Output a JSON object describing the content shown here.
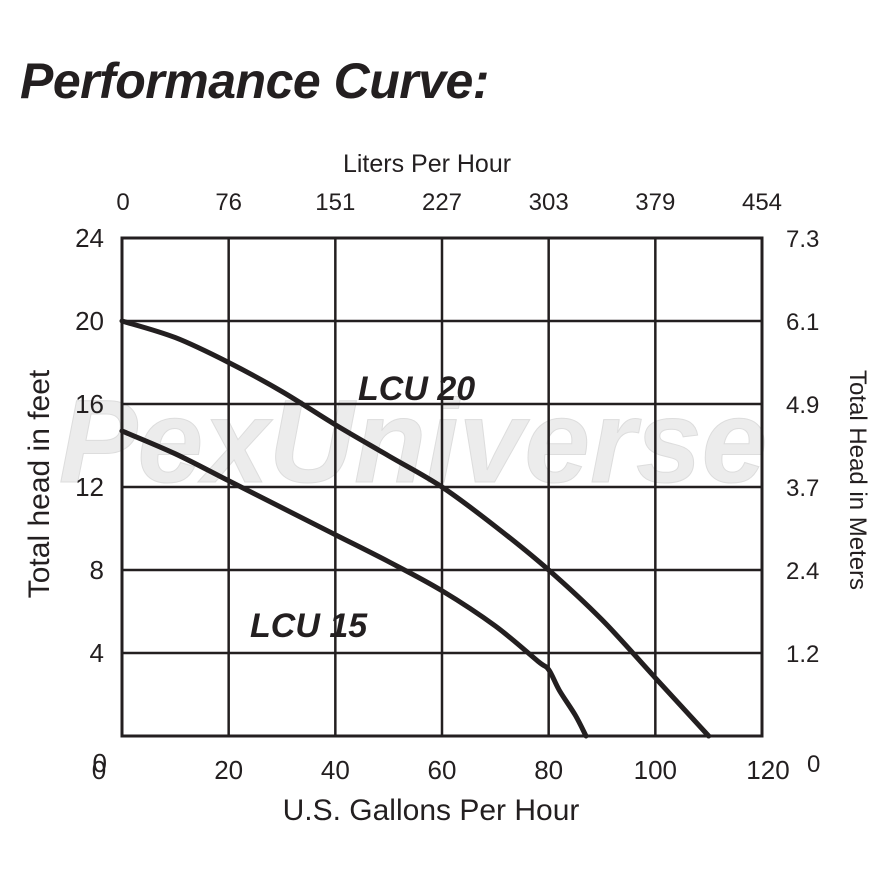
{
  "page": {
    "title": "Performance Curve:",
    "watermark": "PexUniverse"
  },
  "chart_data": {
    "type": "line",
    "title": "Performance Curve:",
    "xlabel": "U.S. Gallons Per Hour",
    "ylabel": "Total head in feet",
    "x2label": "Liters Per Hour",
    "y2label": "Total Head in Meters",
    "xlim": [
      0,
      120
    ],
    "ylim": [
      0,
      24
    ],
    "x_ticks": [
      0,
      20,
      40,
      60,
      80,
      100,
      120
    ],
    "y_ticks": [
      0,
      4,
      8,
      12,
      16,
      20,
      24
    ],
    "x_tick_labels": [
      "0",
      "20",
      "40",
      "60",
      "80",
      "100",
      "120"
    ],
    "y_tick_labels": [
      "0",
      "4",
      "8",
      "12",
      "16",
      "20",
      "24"
    ],
    "x2_tick_labels": [
      "0",
      "76",
      "151",
      "227",
      "303",
      "379",
      "454"
    ],
    "y2_tick_labels": [
      "0",
      "1.2",
      "2.4",
      "3.7",
      "4.9",
      "6.1",
      "7.3"
    ],
    "grid": true,
    "series": [
      {
        "name": "LCU 20",
        "x": [
          0,
          10,
          20,
          30,
          40,
          50,
          60,
          70,
          80,
          90,
          100,
          110
        ],
        "y": [
          20,
          19.2,
          18.0,
          16.6,
          15.0,
          13.5,
          12.0,
          10.1,
          8.0,
          5.6,
          2.8,
          0
        ]
      },
      {
        "name": "LCU 15",
        "x": [
          0,
          10,
          20,
          30,
          40,
          50,
          60,
          70,
          78,
          80,
          82,
          85,
          87
        ],
        "y": [
          14.7,
          13.6,
          12.3,
          11.0,
          9.7,
          8.4,
          7.0,
          5.3,
          3.6,
          3.2,
          2.2,
          1.0,
          0
        ]
      }
    ],
    "colors": {
      "line": "#231f20",
      "grid": "#231f20",
      "text": "#231f20",
      "watermark": "#e9e9e9"
    }
  }
}
